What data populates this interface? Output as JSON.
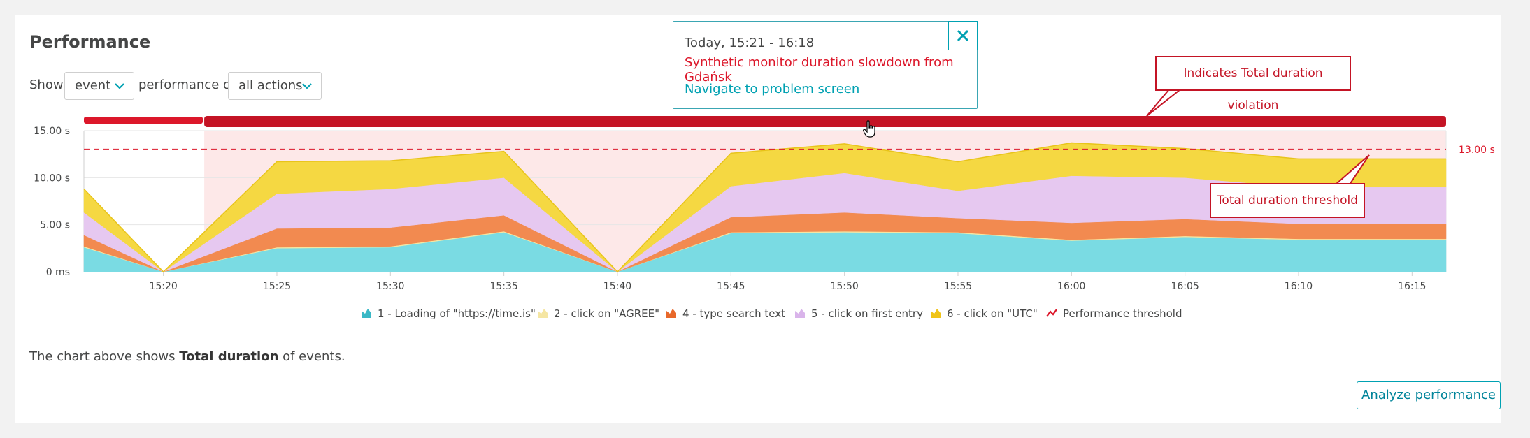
{
  "header": {
    "title": "Performance"
  },
  "controls": {
    "show_label": "Show",
    "event_select": "event",
    "performance_of_label": "performance of",
    "actions_select": "all actions"
  },
  "tooltip": {
    "time_range": "Today, 15:21 - 16:18",
    "problem": "Synthetic monitor duration slowdown from Gdańsk",
    "link": "Navigate to problem screen"
  },
  "callouts": {
    "violation": "Indicates Total duration violation",
    "threshold": "Total duration threshold"
  },
  "note": {
    "prefix": "The chart above shows ",
    "bold": "Total duration",
    "suffix": " of events."
  },
  "analyze_button": "Analyze performance",
  "colors": {
    "accent": "#00a1b2",
    "problem": "#dc172a",
    "violation_bar": "#c41425"
  },
  "chart_data": {
    "type": "area",
    "stacked": true,
    "y_tick_labels": [
      "0 ms",
      "5.00 s",
      "10.00 s",
      "15.00 s"
    ],
    "ylim": [
      0,
      15
    ],
    "x_tick_labels": [
      "15:20",
      "15:25",
      "15:30",
      "15:35",
      "15:40",
      "15:45",
      "15:50",
      "15:55",
      "16:00",
      "16:05",
      "16:10",
      "16:15"
    ],
    "x": [
      "15:16.5",
      "15:20",
      "15:25",
      "15:30",
      "15:35",
      "15:40",
      "15:45",
      "15:50",
      "15:55",
      "16:00",
      "16:05",
      "16:10",
      "16:16.5"
    ],
    "x_minutes": [
      -3.5,
      0,
      5,
      10,
      15,
      20,
      25,
      30,
      35,
      40,
      45,
      50,
      56.5
    ],
    "xlim_minutes": [
      -3.5,
      56.5
    ],
    "threshold": {
      "value": 13,
      "label": "13.00 s"
    },
    "violation_window_minutes": [
      1.8,
      56.5
    ],
    "series": [
      {
        "name": "1 - Loading of \"https://time.is\"",
        "color": "#7adbe3",
        "values": [
          2.6,
          0,
          2.5,
          2.6,
          4.2,
          0,
          4.1,
          4.2,
          4.1,
          3.3,
          3.7,
          3.4,
          3.4
        ]
      },
      {
        "name": "2 - click on \"AGREE\"",
        "color": "#f5e6a3",
        "values": [
          0.1,
          0,
          0.1,
          0.1,
          0.1,
          0,
          0.1,
          0.1,
          0.1,
          0.1,
          0.1,
          0.1,
          0.1
        ]
      },
      {
        "name": "4 - type search text",
        "color": "#f28a50",
        "values": [
          1.2,
          0,
          2.0,
          2.0,
          1.7,
          0,
          1.6,
          2.0,
          1.5,
          1.8,
          1.8,
          1.6,
          1.6
        ]
      },
      {
        "name": "5 - click on first entry",
        "color": "#e6c8f0",
        "values": [
          2.4,
          0,
          3.7,
          4.1,
          4.0,
          0,
          3.3,
          4.2,
          2.9,
          5.0,
          4.4,
          3.9,
          3.9
        ]
      },
      {
        "name": "6 - click on \"UTC\"",
        "color": "#f5d842",
        "values": [
          2.5,
          0,
          3.4,
          3.0,
          2.8,
          0,
          3.5,
          3.1,
          3.1,
          3.5,
          3.1,
          3.0,
          3.0
        ]
      }
    ],
    "legend_extra": "Performance threshold"
  }
}
